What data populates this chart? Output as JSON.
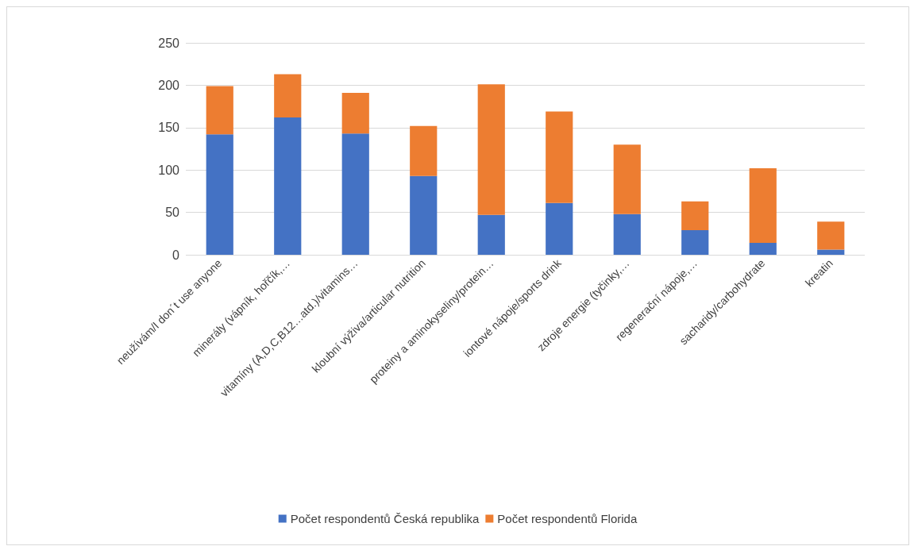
{
  "chart_data": {
    "type": "bar",
    "stacked": true,
    "categories": [
      "neužívám/I don´t use anyone",
      "minerály (vápník, hořčík,…",
      "vitamíny (A,D,C,B12…atd.)/vitamins…",
      "kloubní výživa/articular nutrition",
      "proteiny a aminokyseliny/protein…",
      "iontové nápoje/sports drink",
      "zdroje energie (tyčinky,…",
      "regenerační nápoje,…",
      "sacharidy/carbohydrate",
      "kreatin"
    ],
    "series": [
      {
        "name": "Počet respondentů Česká republika",
        "color": "#4472c4",
        "values": [
          142,
          162,
          143,
          93,
          47,
          61,
          48,
          29,
          14,
          6
        ]
      },
      {
        "name": "Počet respondentů Florida",
        "color": "#ed7d31",
        "values": [
          57,
          51,
          48,
          59,
          154,
          108,
          82,
          34,
          88,
          33
        ]
      }
    ],
    "ylim": [
      0,
      250
    ],
    "yticks": [
      0,
      50,
      100,
      150,
      200,
      250
    ],
    "grid": "y",
    "legend": "bottom"
  }
}
